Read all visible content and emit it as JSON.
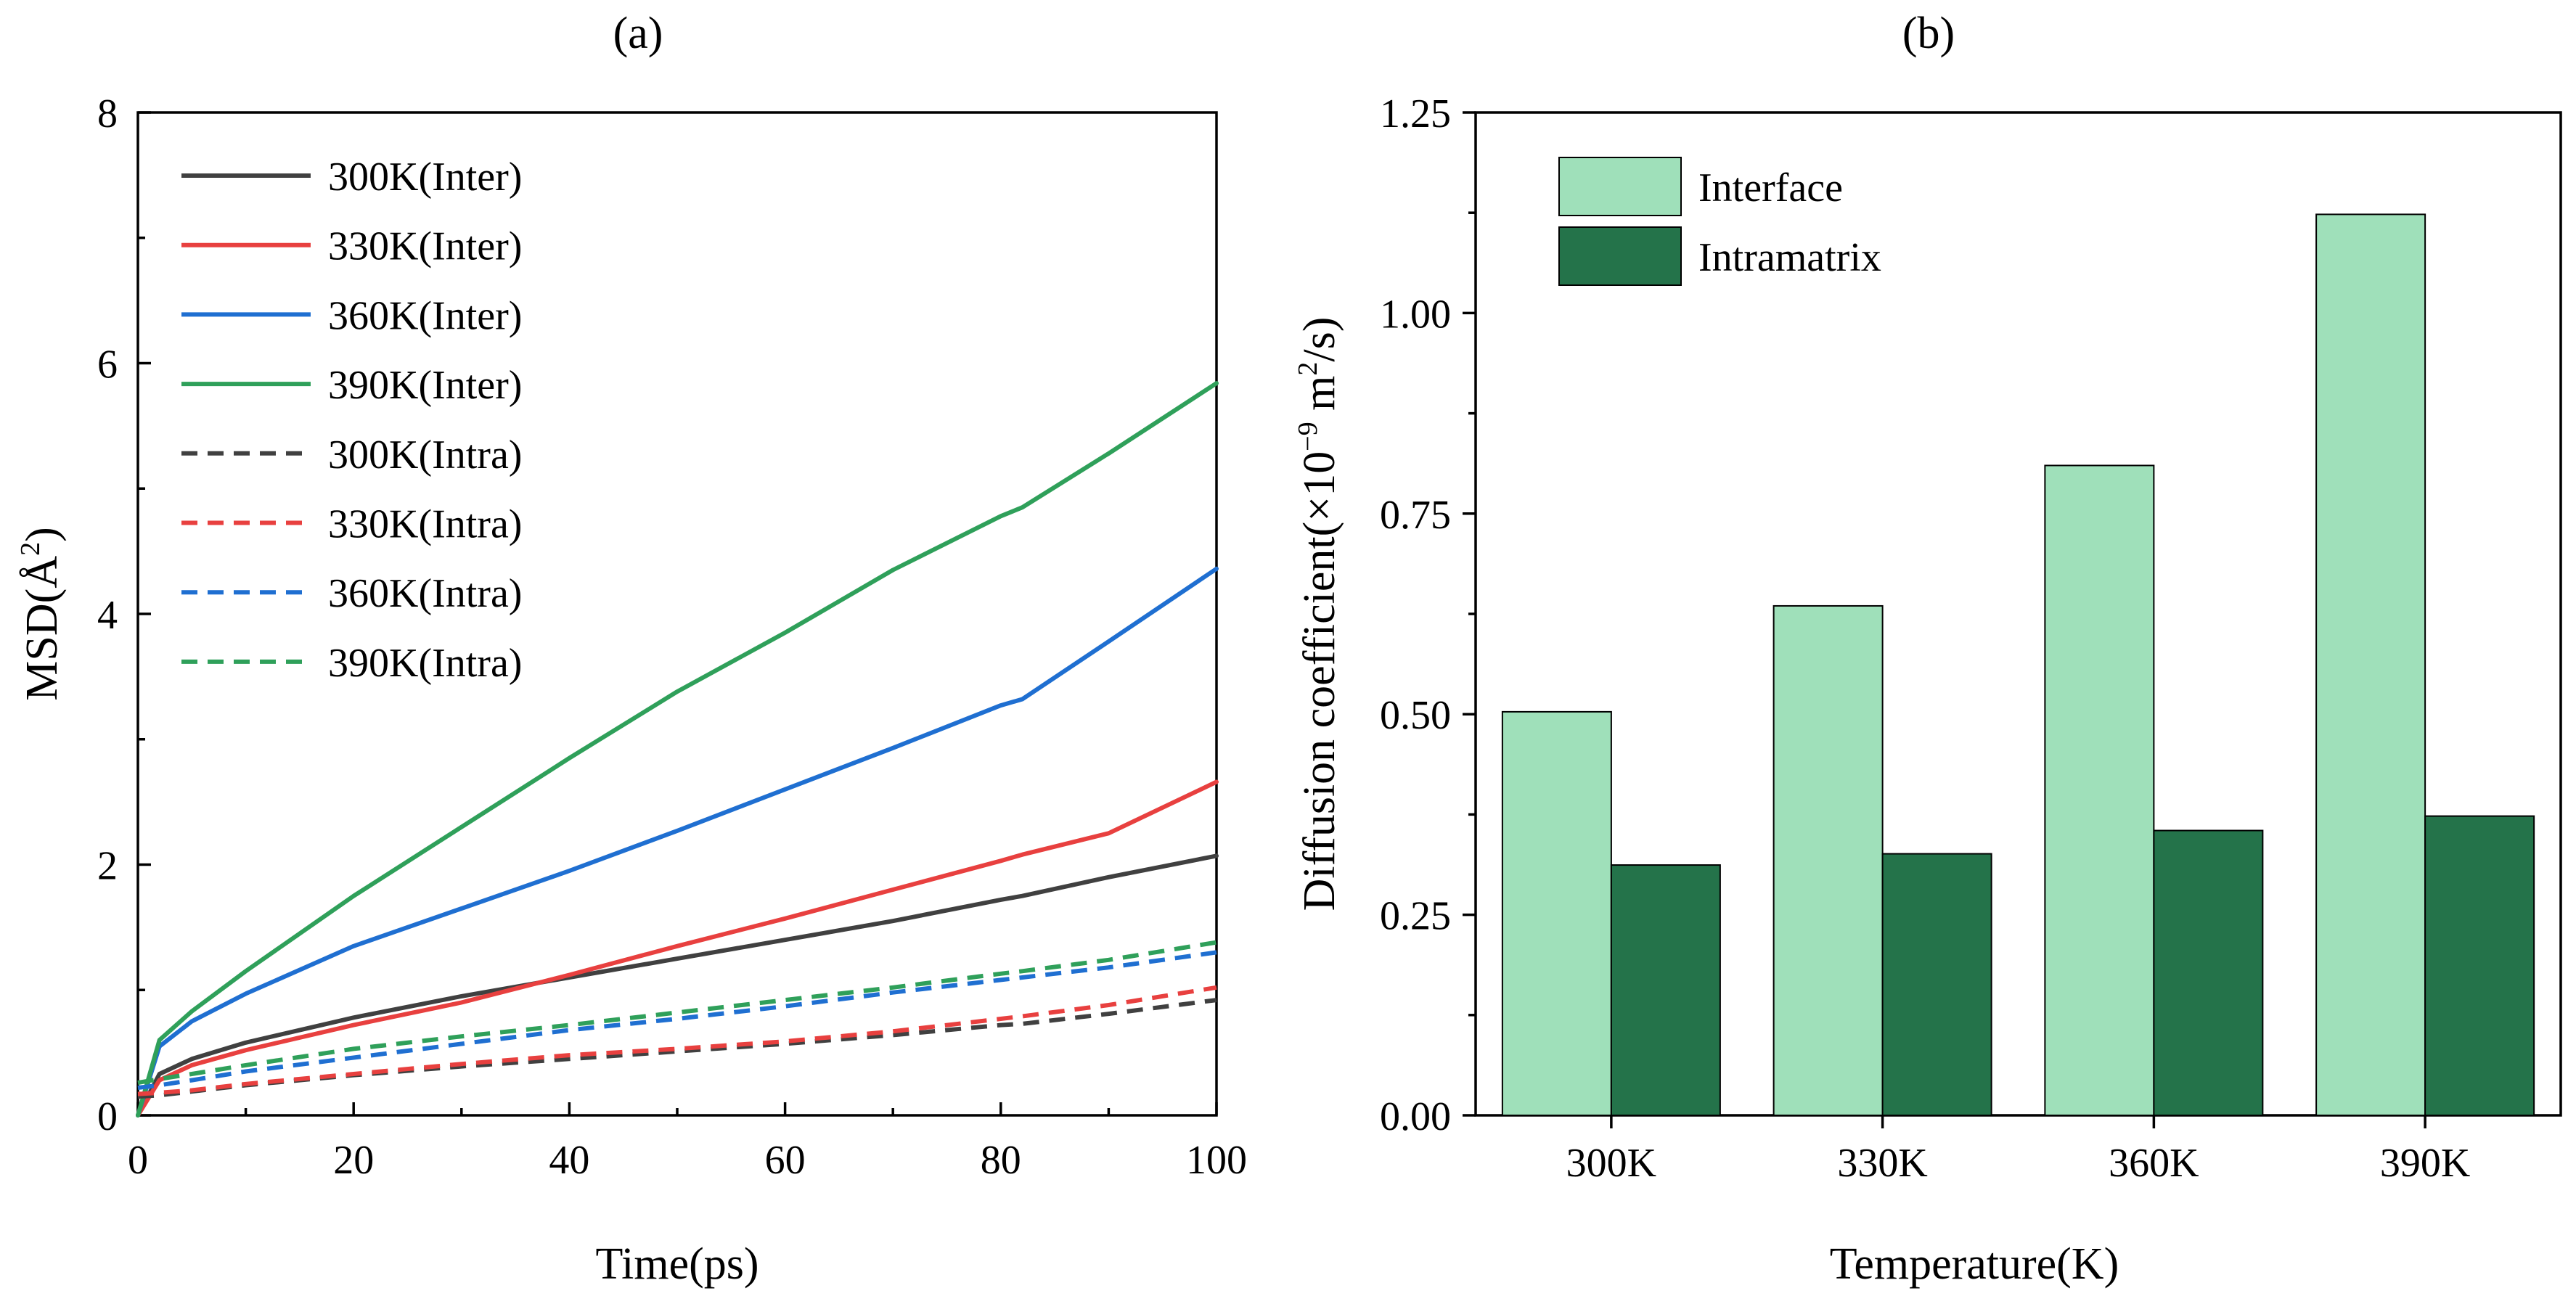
{
  "chart_data": [
    {
      "panel": "a",
      "panel_label": "(a)",
      "type": "line",
      "xlabel": "Time(ps)",
      "ylabel": "MSD(Å²)",
      "ylabel_base": "MSD(Å",
      "ylabel_sup": "2",
      "ylabel_end": ")",
      "xlim": [
        0,
        100
      ],
      "ylim": [
        0,
        8
      ],
      "xticks": [
        0,
        20,
        40,
        60,
        80,
        100
      ],
      "yticks": [
        0,
        2,
        4,
        6,
        8
      ],
      "x": [
        0,
        2,
        5,
        10,
        20,
        30,
        40,
        50,
        60,
        70,
        80,
        82,
        90,
        100
      ],
      "series": [
        {
          "name": "300K(Inter)",
          "color": "#404040",
          "dash": false,
          "values": [
            0,
            0.33,
            0.45,
            0.58,
            0.78,
            0.95,
            1.1,
            1.25,
            1.4,
            1.55,
            1.72,
            1.75,
            1.9,
            2.07
          ]
        },
        {
          "name": "330K(Inter)",
          "color": "#e8403f",
          "dash": false,
          "values": [
            0,
            0.28,
            0.4,
            0.52,
            0.72,
            0.9,
            1.12,
            1.35,
            1.57,
            1.8,
            2.03,
            2.08,
            2.25,
            2.66
          ]
        },
        {
          "name": "360K(Inter)",
          "color": "#1f6fd1",
          "dash": false,
          "values": [
            0,
            0.55,
            0.75,
            0.97,
            1.35,
            1.65,
            1.95,
            2.27,
            2.6,
            2.93,
            3.27,
            3.32,
            3.78,
            4.36
          ]
        },
        {
          "name": "390K(Inter)",
          "color": "#2fa05a",
          "dash": false,
          "values": [
            0,
            0.6,
            0.83,
            1.15,
            1.75,
            2.3,
            2.85,
            3.38,
            3.85,
            4.35,
            4.78,
            4.85,
            5.28,
            5.84
          ]
        },
        {
          "name": "300K(Intra)",
          "color": "#404040",
          "dash": true,
          "values": [
            0.15,
            0.16,
            0.19,
            0.24,
            0.32,
            0.39,
            0.45,
            0.51,
            0.57,
            0.64,
            0.72,
            0.73,
            0.81,
            0.92
          ]
        },
        {
          "name": "330K(Intra)",
          "color": "#e8403f",
          "dash": true,
          "values": [
            0.17,
            0.18,
            0.2,
            0.25,
            0.33,
            0.41,
            0.48,
            0.53,
            0.59,
            0.67,
            0.77,
            0.79,
            0.88,
            1.02
          ]
        },
        {
          "name": "360K(Intra)",
          "color": "#1f6fd1",
          "dash": true,
          "values": [
            0.22,
            0.24,
            0.28,
            0.35,
            0.46,
            0.57,
            0.68,
            0.77,
            0.87,
            0.98,
            1.08,
            1.1,
            1.18,
            1.3
          ]
        },
        {
          "name": "390K(Intra)",
          "color": "#2fa05a",
          "dash": true,
          "values": [
            0.26,
            0.29,
            0.33,
            0.4,
            0.53,
            0.63,
            0.72,
            0.82,
            0.92,
            1.02,
            1.13,
            1.15,
            1.24,
            1.38
          ]
        }
      ],
      "legend_position": "top-left"
    },
    {
      "panel": "b",
      "panel_label": "(b)",
      "type": "bar",
      "xlabel": "Temperature(K)",
      "ylabel": "Diffusion coefficient(×10⁻⁹ m²/s)",
      "ylabel_base": "Diffusion coefficient(×10",
      "ylabel_sup1": "−9",
      "ylabel_mid": " m",
      "ylabel_sup2": "2",
      "ylabel_end": "/s)",
      "categories": [
        "300K",
        "330K",
        "360K",
        "390K"
      ],
      "ylim": [
        0,
        1.25
      ],
      "yticks": [
        "0.00",
        "0.25",
        "0.50",
        "0.75",
        "1.00",
        "1.25"
      ],
      "series": [
        {
          "name": "Interface",
          "color": "#9fe0ba",
          "values": [
            0.503,
            0.635,
            0.81,
            1.123
          ]
        },
        {
          "name": "Intramatrix",
          "color": "#24734a",
          "values": [
            0.312,
            0.326,
            0.355,
            0.373
          ]
        }
      ],
      "legend_position": "top-left"
    }
  ]
}
